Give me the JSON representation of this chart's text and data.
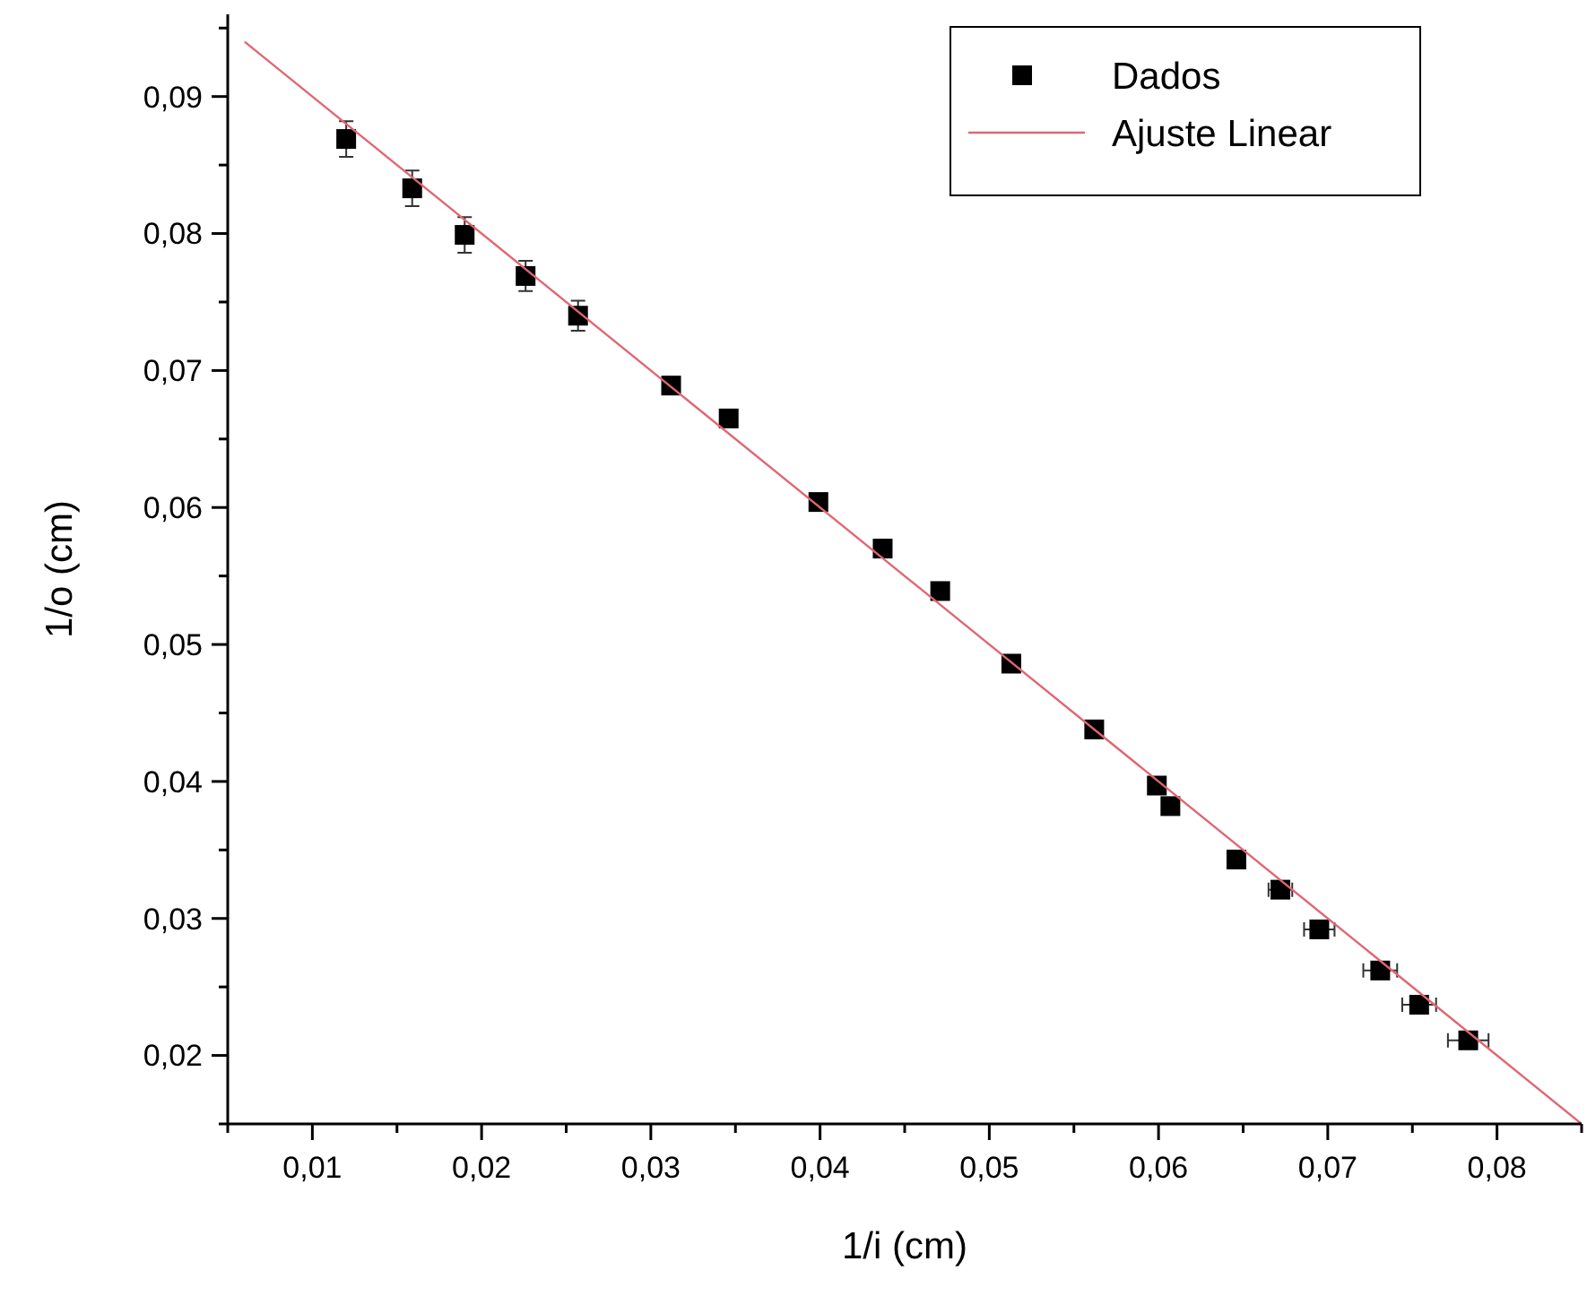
{
  "chart_data": {
    "type": "scatter",
    "xlabel": "1/i (cm)",
    "ylabel": "1/o (cm)",
    "xlim": [
      0.005,
      0.085
    ],
    "xticks": [
      {
        "value": 0.005,
        "label": null
      },
      {
        "value": 0.01,
        "label": "0,01"
      },
      {
        "value": 0.015,
        "label": null
      },
      {
        "value": 0.02,
        "label": "0,02"
      },
      {
        "value": 0.025,
        "label": null
      },
      {
        "value": 0.03,
        "label": "0,03"
      },
      {
        "value": 0.035,
        "label": null
      },
      {
        "value": 0.04,
        "label": "0,04"
      },
      {
        "value": 0.045,
        "label": null
      },
      {
        "value": 0.05,
        "label": "0,05"
      },
      {
        "value": 0.055,
        "label": null
      },
      {
        "value": 0.06,
        "label": "0,06"
      },
      {
        "value": 0.065,
        "label": null
      },
      {
        "value": 0.07,
        "label": "0,07"
      },
      {
        "value": 0.075,
        "label": null
      },
      {
        "value": 0.08,
        "label": "0,08"
      },
      {
        "value": 0.085,
        "label": null
      }
    ],
    "ylim": [
      0.015,
      0.096
    ],
    "yticks": [
      {
        "value": 0.015,
        "label": null
      },
      {
        "value": 0.02,
        "label": "0,02"
      },
      {
        "value": 0.025,
        "label": null
      },
      {
        "value": 0.03,
        "label": "0,03"
      },
      {
        "value": 0.035,
        "label": null
      },
      {
        "value": 0.04,
        "label": "0,04"
      },
      {
        "value": 0.045,
        "label": null
      },
      {
        "value": 0.05,
        "label": "0,05"
      },
      {
        "value": 0.055,
        "label": null
      },
      {
        "value": 0.06,
        "label": "0,06"
      },
      {
        "value": 0.065,
        "label": null
      },
      {
        "value": 0.07,
        "label": "0,07"
      },
      {
        "value": 0.075,
        "label": null
      },
      {
        "value": 0.08,
        "label": "0,08"
      },
      {
        "value": 0.085,
        "label": null
      },
      {
        "value": 0.09,
        "label": "0,09"
      },
      {
        "value": 0.095,
        "label": null
      }
    ],
    "legend": "top right",
    "series": [
      {
        "name": "Dados",
        "marker": "square",
        "color": "#000000",
        "x": [
          0.012,
          0.0159,
          0.019,
          0.0226,
          0.0257,
          0.0312,
          0.0346,
          0.0399,
          0.0437,
          0.0471,
          0.0513,
          0.0562,
          0.0599,
          0.0607,
          0.0646,
          0.0672,
          0.0695,
          0.0731,
          0.0754,
          0.0783
        ],
        "values": [
          0.0869,
          0.0833,
          0.0799,
          0.0769,
          0.074,
          0.0689,
          0.0665,
          0.0604,
          0.057,
          0.0539,
          0.0486,
          0.0438,
          0.0397,
          0.0382,
          0.0343,
          0.0321,
          0.0292,
          0.0262,
          0.0237,
          0.0211
        ],
        "errors": [
          0.0013,
          0.0013,
          0.0013,
          0.0011,
          0.0011,
          null,
          null,
          null,
          null,
          null,
          null,
          null,
          null,
          null,
          null,
          null,
          null,
          null,
          null,
          null
        ],
        "xerrors": [
          null,
          null,
          null,
          null,
          null,
          null,
          null,
          null,
          null,
          null,
          null,
          null,
          null,
          null,
          null,
          0.0007,
          0.0009,
          0.001,
          0.001,
          0.0012
        ]
      },
      {
        "name": "Ajuste Linear",
        "type": "line",
        "marker": "none",
        "line_style": "solid",
        "color": "#e06672",
        "x": [
          0.006,
          0.085
        ],
        "values": [
          0.094,
          0.015
        ]
      }
    ]
  }
}
